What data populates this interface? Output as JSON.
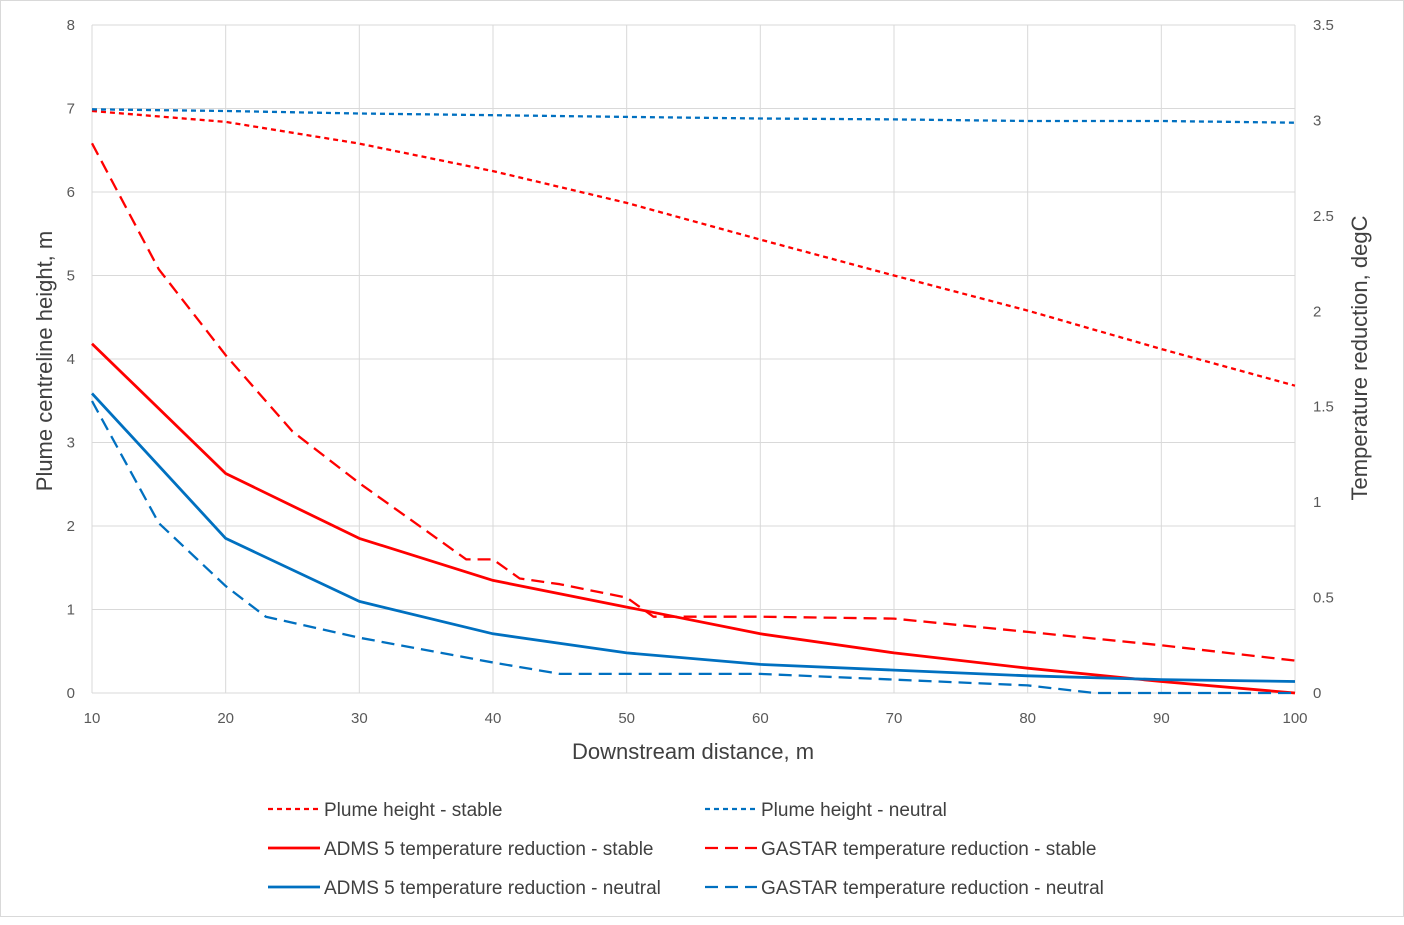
{
  "chart_data": {
    "type": "line",
    "title": "",
    "xlabel": "Downstream distance, m",
    "ylabel_left": "Plume centreline height, m",
    "ylabel_right": "Temperature reduction, degC",
    "xlim": [
      10,
      100
    ],
    "ylim_left": [
      0,
      8
    ],
    "ylim_right": [
      0,
      3.5
    ],
    "x_ticks": [
      "10",
      "20",
      "30",
      "40",
      "50",
      "60",
      "70",
      "80",
      "90",
      "100"
    ],
    "y_left_ticks": [
      "0",
      "1",
      "2",
      "3",
      "4",
      "5",
      "6",
      "7",
      "8"
    ],
    "y_right_ticks": [
      "0",
      "0.5",
      "1",
      "1.5",
      "2",
      "2.5",
      "3",
      "3.5"
    ],
    "grid": true,
    "legend_position": "bottom",
    "series": [
      {
        "name": "Plume height - stable",
        "axis": "left",
        "color": "#ff0000",
        "style": "dotted",
        "width": 2.3,
        "points": [
          [
            10,
            6.97
          ],
          [
            20,
            6.84
          ],
          [
            30,
            6.58
          ],
          [
            40,
            6.25
          ],
          [
            50,
            5.87
          ],
          [
            60,
            5.43
          ],
          [
            70,
            5.0
          ],
          [
            80,
            4.58
          ],
          [
            90,
            4.12
          ],
          [
            100,
            3.68
          ]
        ]
      },
      {
        "name": "Plume height - neutral",
        "axis": "left",
        "color": "#0070c0",
        "style": "dotted",
        "width": 2.3,
        "points": [
          [
            10,
            6.99
          ],
          [
            20,
            6.97
          ],
          [
            30,
            6.94
          ],
          [
            40,
            6.92
          ],
          [
            50,
            6.9
          ],
          [
            60,
            6.88
          ],
          [
            70,
            6.87
          ],
          [
            80,
            6.85
          ],
          [
            90,
            6.85
          ],
          [
            100,
            6.83
          ]
        ]
      },
      {
        "name": "ADMS 5 temperature reduction - stable",
        "axis": "right",
        "color": "#ff0000",
        "style": "solid",
        "width": 2.8,
        "points": [
          [
            10,
            1.83
          ],
          [
            20,
            1.15
          ],
          [
            30,
            0.81
          ],
          [
            40,
            0.59
          ],
          [
            50,
            0.45
          ],
          [
            60,
            0.31
          ],
          [
            70,
            0.21
          ],
          [
            80,
            0.13
          ],
          [
            90,
            0.06
          ],
          [
            100,
            0.0
          ]
        ]
      },
      {
        "name": "GASTAR temperature reduction - stable",
        "axis": "right",
        "color": "#ff0000",
        "style": "dashed",
        "width": 2.3,
        "points": [
          [
            10,
            2.88
          ],
          [
            15,
            2.22
          ],
          [
            20,
            1.77
          ],
          [
            25,
            1.37
          ],
          [
            30,
            1.1
          ],
          [
            35,
            0.85
          ],
          [
            38,
            0.7
          ],
          [
            40,
            0.7
          ],
          [
            42,
            0.6
          ],
          [
            45,
            0.57
          ],
          [
            50,
            0.5
          ],
          [
            52,
            0.4
          ],
          [
            60,
            0.4
          ],
          [
            70,
            0.39
          ],
          [
            80,
            0.32
          ],
          [
            90,
            0.25
          ],
          [
            100,
            0.17
          ]
        ]
      },
      {
        "name": "ADMS 5 temperature reduction - neutral",
        "axis": "right",
        "color": "#0070c0",
        "style": "solid",
        "width": 2.8,
        "points": [
          [
            10,
            1.57
          ],
          [
            20,
            0.81
          ],
          [
            30,
            0.48
          ],
          [
            40,
            0.31
          ],
          [
            50,
            0.21
          ],
          [
            60,
            0.15
          ],
          [
            70,
            0.12
          ],
          [
            80,
            0.09
          ],
          [
            90,
            0.07
          ],
          [
            100,
            0.06
          ]
        ]
      },
      {
        "name": "GASTAR temperature reduction - neutral",
        "axis": "right",
        "color": "#0070c0",
        "style": "dashed",
        "width": 2.3,
        "points": [
          [
            10,
            1.53
          ],
          [
            15,
            0.89
          ],
          [
            20,
            0.56
          ],
          [
            23,
            0.4
          ],
          [
            30,
            0.29
          ],
          [
            40,
            0.16
          ],
          [
            45,
            0.1
          ],
          [
            60,
            0.1
          ],
          [
            70,
            0.07
          ],
          [
            80,
            0.04
          ],
          [
            85,
            0.0
          ],
          [
            100,
            0.0
          ]
        ]
      }
    ]
  }
}
